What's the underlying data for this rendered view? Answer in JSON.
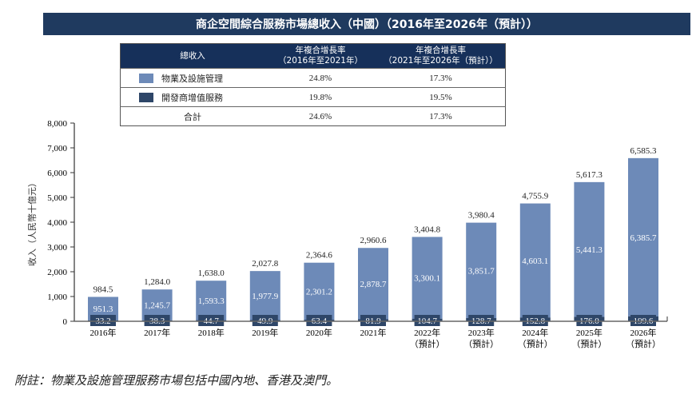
{
  "title": "商企空間綜合服務市場總收入（中國）（2016年至2026年（預計））",
  "cagr_table": {
    "headers": [
      "總收入",
      "年複合增長率\n（2016年至2021年）",
      "年複合增長率\n（2021年至2026年（預計））"
    ],
    "header_lines": [
      [
        "總收入"
      ],
      [
        "年複合增長率",
        "（2016年至2021年）"
      ],
      [
        "年複合增長率",
        "（2021年至2026年（預計））"
      ]
    ],
    "rows": [
      {
        "label": "物業及設施管理",
        "cagr_2016_2021": "24.8%",
        "cagr_2021_2026": "17.3%",
        "color": "#6d8ab8"
      },
      {
        "label": "開發商增值服務",
        "cagr_2016_2021": "19.8%",
        "cagr_2021_2026": "19.5%",
        "color": "#2e4668"
      },
      {
        "label": "合計",
        "cagr_2016_2021": "24.6%",
        "cagr_2021_2026": "17.3%"
      }
    ]
  },
  "chart_data": {
    "type": "bar",
    "stacked": true,
    "title": "商企空間綜合服務市場總收入（中國）（2016年至2026年（預計））",
    "ylabel": "收入（人民幣十億元）",
    "xlabel": "",
    "ylim": [
      0,
      8000
    ],
    "yticks": [
      "0",
      "1,000",
      "2,000",
      "3,000",
      "4,000",
      "5,000",
      "6,000",
      "7,000",
      "8,000"
    ],
    "categories": [
      "2016年",
      "2017年",
      "2018年",
      "2019年",
      "2020年",
      "2021年",
      "2022年",
      "2023年",
      "2024年",
      "2025年",
      "2026年"
    ],
    "category_sub": [
      "",
      "",
      "",
      "",
      "",
      "",
      "（預計）",
      "（預計）",
      "（預計）",
      "（預計）",
      "（預計）"
    ],
    "series": [
      {
        "name": "開發商增值服務",
        "color": "#2e4668",
        "values": [
          33.2,
          38.3,
          44.7,
          49.9,
          63.4,
          81.9,
          104.7,
          128.7,
          152.8,
          176.0,
          199.6
        ],
        "labels": [
          "33.2",
          "38.3",
          "44.7",
          "49.9",
          "63.4",
          "81.9",
          "104.7",
          "128.7",
          "152.8",
          "176.0",
          "199.6"
        ]
      },
      {
        "name": "物業及設施管理",
        "color": "#6d8ab8",
        "values": [
          951.3,
          1245.7,
          1593.3,
          1977.9,
          2301.2,
          2878.7,
          3300.1,
          3851.7,
          4603.1,
          5441.3,
          6385.7
        ],
        "labels": [
          "951.3",
          "1,245.7",
          "1,593.3",
          "1,977.9",
          "2,301.2",
          "2,878.7",
          "3,300.1",
          "3,851.7",
          "4,603.1",
          "5,441.3",
          "6,385.7"
        ]
      }
    ],
    "totals": [
      984.5,
      1284.0,
      1638.0,
      2027.8,
      2364.6,
      2960.6,
      3404.8,
      3980.4,
      4755.9,
      5617.3,
      6585.3
    ],
    "total_labels": [
      "984.5",
      "1,284.0",
      "1,638.0",
      "2,027.8",
      "2,364.6",
      "2,960.6",
      "3,404.8",
      "3,980.4",
      "4,755.9",
      "5,617.3",
      "6,585.3"
    ],
    "grid": false
  },
  "footnote": "附註：物業及設施管理服務市場包括中國內地、香港及澳門。"
}
